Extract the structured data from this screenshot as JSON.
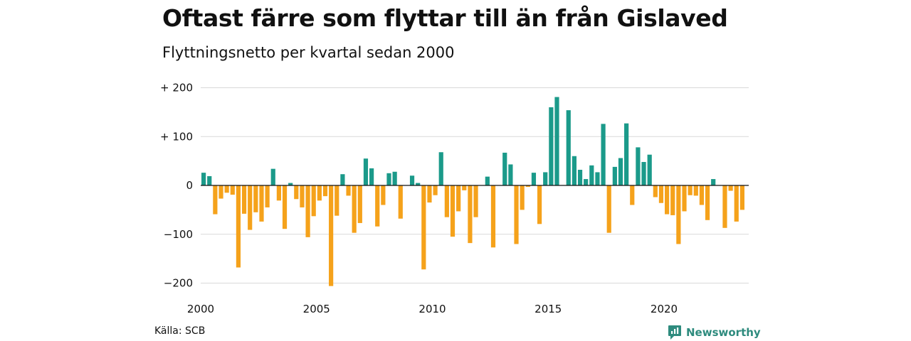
{
  "title": "Oftast färre som flyttar till än från Gislaved",
  "subtitle": "Flyttningsnetto per kvartal sedan 2000",
  "source": "Källa: SCB",
  "brand": {
    "name": "Newsworthy",
    "color": "#2e8b7e"
  },
  "colors": {
    "positive": "#1b9a8a",
    "negative": "#f5a21b",
    "grid": "#d9d9d9",
    "zero_line": "#111111"
  },
  "chart_data": {
    "type": "bar",
    "title": "Oftast färre som flyttar till än från Gislaved",
    "subtitle": "Flyttningsnetto per kvartal sedan 2000",
    "xlabel": "",
    "ylabel": "",
    "ylim": [
      -220,
      210
    ],
    "xlim": [
      2000,
      2023.75
    ],
    "grid": true,
    "y_ticks": [
      {
        "value": 200,
        "label": "+ 200"
      },
      {
        "value": 100,
        "label": "+ 100"
      },
      {
        "value": 0,
        "label": "0"
      },
      {
        "value": -100,
        "label": "−100"
      },
      {
        "value": -200,
        "label": "−200"
      }
    ],
    "x_ticks": [
      {
        "value": 2000,
        "label": "2000"
      },
      {
        "value": 2005,
        "label": "2005"
      },
      {
        "value": 2010,
        "label": "2010"
      },
      {
        "value": 2015,
        "label": "2015"
      },
      {
        "value": 2020,
        "label": "2020"
      }
    ],
    "start_year": 2000,
    "categories": [
      "2000Q1",
      "2000Q2",
      "2000Q3",
      "2000Q4",
      "2001Q1",
      "2001Q2",
      "2001Q3",
      "2001Q4",
      "2002Q1",
      "2002Q2",
      "2002Q3",
      "2002Q4",
      "2003Q1",
      "2003Q2",
      "2003Q3",
      "2003Q4",
      "2004Q1",
      "2004Q2",
      "2004Q3",
      "2004Q4",
      "2005Q1",
      "2005Q2",
      "2005Q3",
      "2005Q4",
      "2006Q1",
      "2006Q2",
      "2006Q3",
      "2006Q4",
      "2007Q1",
      "2007Q2",
      "2007Q3",
      "2007Q4",
      "2008Q1",
      "2008Q2",
      "2008Q3",
      "2008Q4",
      "2009Q1",
      "2009Q2",
      "2009Q3",
      "2009Q4",
      "2010Q1",
      "2010Q2",
      "2010Q3",
      "2010Q4",
      "2011Q1",
      "2011Q2",
      "2011Q3",
      "2011Q4",
      "2012Q1",
      "2012Q2",
      "2012Q3",
      "2012Q4",
      "2013Q1",
      "2013Q2",
      "2013Q3",
      "2013Q4",
      "2014Q1",
      "2014Q2",
      "2014Q3",
      "2014Q4",
      "2015Q1",
      "2015Q2",
      "2015Q3",
      "2015Q4",
      "2016Q1",
      "2016Q2",
      "2016Q3",
      "2016Q4",
      "2017Q1",
      "2017Q2",
      "2017Q3",
      "2017Q4",
      "2018Q1",
      "2018Q2",
      "2018Q3",
      "2018Q4",
      "2019Q1",
      "2019Q2",
      "2019Q3",
      "2019Q4",
      "2020Q1",
      "2020Q2",
      "2020Q3",
      "2020Q4",
      "2021Q1",
      "2021Q2",
      "2021Q3",
      "2021Q4",
      "2022Q1",
      "2022Q2",
      "2022Q3",
      "2022Q4",
      "2023Q1",
      "2023Q2",
      "2023Q3"
    ],
    "values": [
      26,
      19,
      -59,
      -27,
      -15,
      -19,
      -168,
      -58,
      -91,
      -55,
      -74,
      -45,
      34,
      -31,
      -89,
      5,
      -28,
      -45,
      -106,
      -63,
      -31,
      -22,
      -206,
      -62,
      23,
      -21,
      -97,
      -77,
      55,
      35,
      -84,
      -40,
      25,
      28,
      -68,
      0,
      20,
      5,
      -172,
      -35,
      -20,
      68,
      -65,
      -105,
      -53,
      -10,
      -118,
      -65,
      0,
      18,
      -127,
      0,
      67,
      43,
      -120,
      -50,
      -3,
      26,
      -79,
      27,
      160,
      181,
      0,
      154,
      60,
      32,
      13,
      41,
      27,
      126,
      -97,
      38,
      56,
      127,
      -40,
      78,
      48,
      63,
      -24,
      -36,
      -59,
      -61,
      -120,
      -53,
      -20,
      -21,
      -40,
      -71,
      13,
      0,
      -87,
      -11,
      -74,
      -50,
      0
    ]
  }
}
